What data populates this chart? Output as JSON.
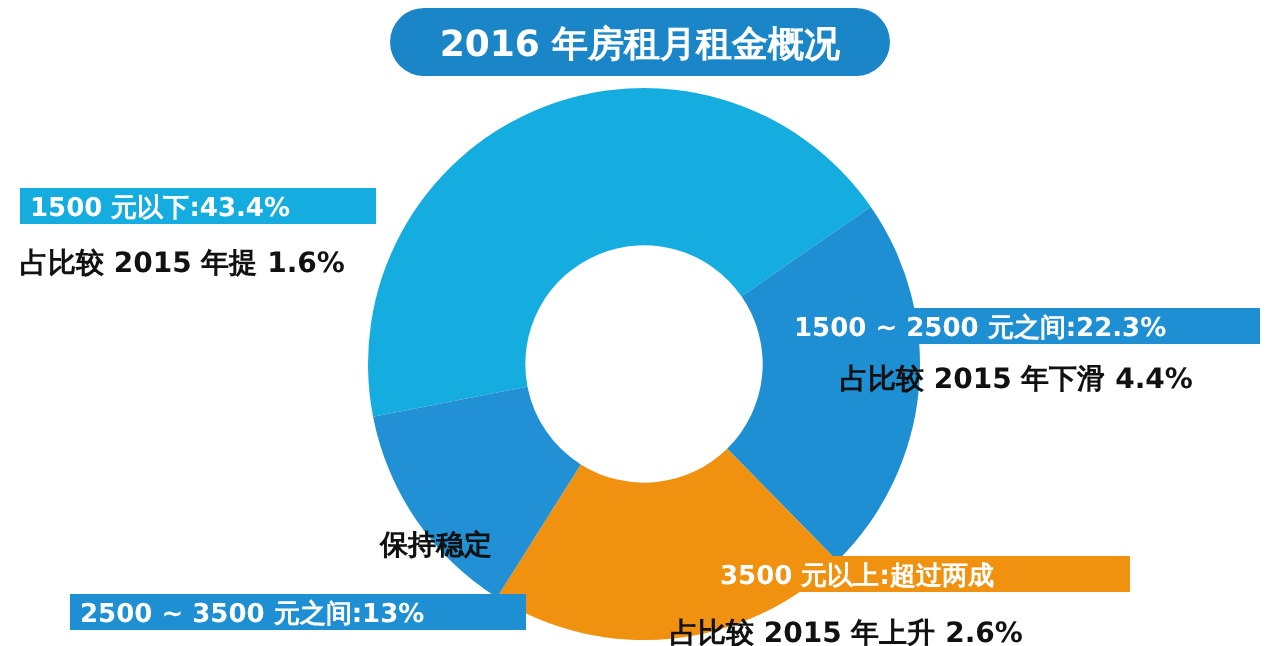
{
  "chart_data": {
    "type": "donut",
    "title": "2016 年房租月租金概况",
    "categories": [
      "1500 元以下:43.4%",
      "1500 ~ 2500 元之间:22.3%",
      "3500 元以上:超过两成",
      "2500 ~ 3500 元之间:13%"
    ],
    "values": [
      43.4,
      22.3,
      21.3,
      13
    ],
    "colors": [
      "#15ade0",
      "#1f8fd3",
      "#f0910f",
      "#2190d5"
    ],
    "annotations": [
      "占比较 2015 年提 1.6%",
      "占比较 2015 年下滑 4.4%",
      "占比较 2015 年上升 2.6%",
      "保持稳定"
    ],
    "legend": false
  }
}
